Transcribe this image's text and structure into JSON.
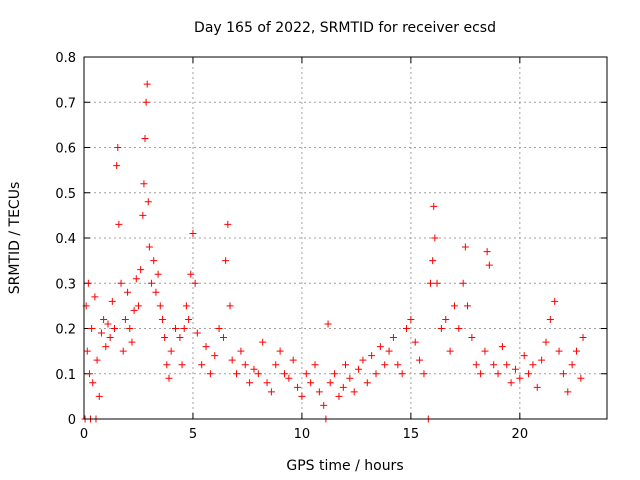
{
  "chart_data": {
    "type": "scatter",
    "title": "Day 165 of 2022, SRMTID for receiver ecsd",
    "xlabel": "GPS time / hours",
    "ylabel": "SRMTID / TECUs",
    "xlim": [
      0,
      24
    ],
    "ylim": [
      0,
      0.8
    ],
    "grid": true,
    "x_ticks": [
      0,
      5,
      10,
      15,
      20
    ],
    "x_tick_labels": [
      "0",
      "5",
      "10",
      "15",
      "20"
    ],
    "y_ticks": [
      0,
      0.1,
      0.2,
      0.3,
      0.4,
      0.5,
      0.6,
      0.7,
      0.8
    ],
    "y_tick_labels": [
      "0",
      "0.1",
      "0.2",
      "0.3",
      "0.4",
      "0.5",
      "0.6",
      "0.7",
      "0.8"
    ],
    "marker": "plus",
    "color": "#ff0000",
    "series": [
      {
        "name": "SRMTID",
        "points": [
          [
            0.05,
            0.0
          ],
          [
            0.1,
            0.25
          ],
          [
            0.15,
            0.15
          ],
          [
            0.2,
            0.3
          ],
          [
            0.25,
            0.1
          ],
          [
            0.3,
            0.0
          ],
          [
            0.35,
            0.2
          ],
          [
            0.4,
            0.08
          ],
          [
            0.5,
            0.27
          ],
          [
            0.55,
            0.0
          ],
          [
            0.6,
            0.13
          ],
          [
            0.7,
            0.05
          ],
          [
            0.8,
            0.19
          ],
          [
            0.9,
            0.22
          ],
          [
            1.0,
            0.16
          ],
          [
            1.1,
            0.21
          ],
          [
            1.2,
            0.18
          ],
          [
            1.3,
            0.26
          ],
          [
            1.4,
            0.2
          ],
          [
            1.5,
            0.56
          ],
          [
            1.55,
            0.6
          ],
          [
            1.6,
            0.43
          ],
          [
            1.7,
            0.3
          ],
          [
            1.8,
            0.15
          ],
          [
            1.9,
            0.22
          ],
          [
            2.0,
            0.28
          ],
          [
            2.1,
            0.2
          ],
          [
            2.2,
            0.17
          ],
          [
            2.3,
            0.24
          ],
          [
            2.4,
            0.31
          ],
          [
            2.5,
            0.25
          ],
          [
            2.6,
            0.33
          ],
          [
            2.7,
            0.45
          ],
          [
            2.75,
            0.52
          ],
          [
            2.8,
            0.62
          ],
          [
            2.85,
            0.7
          ],
          [
            2.9,
            0.74
          ],
          [
            2.95,
            0.48
          ],
          [
            3.0,
            0.38
          ],
          [
            3.1,
            0.3
          ],
          [
            3.2,
            0.35
          ],
          [
            3.3,
            0.28
          ],
          [
            3.4,
            0.32
          ],
          [
            3.5,
            0.25
          ],
          [
            3.6,
            0.22
          ],
          [
            3.7,
            0.18
          ],
          [
            3.8,
            0.12
          ],
          [
            3.9,
            0.09
          ],
          [
            4.0,
            0.15
          ],
          [
            4.2,
            0.2
          ],
          [
            4.4,
            0.18
          ],
          [
            4.5,
            0.12
          ],
          [
            4.6,
            0.2
          ],
          [
            4.7,
            0.25
          ],
          [
            4.8,
            0.22
          ],
          [
            4.9,
            0.32
          ],
          [
            5.0,
            0.41
          ],
          [
            5.1,
            0.3
          ],
          [
            5.2,
            0.19
          ],
          [
            5.4,
            0.12
          ],
          [
            5.6,
            0.16
          ],
          [
            5.8,
            0.1
          ],
          [
            6.0,
            0.14
          ],
          [
            6.2,
            0.2
          ],
          [
            6.4,
            0.18
          ],
          [
            6.5,
            0.35
          ],
          [
            6.6,
            0.43
          ],
          [
            6.7,
            0.25
          ],
          [
            6.8,
            0.13
          ],
          [
            7.0,
            0.1
          ],
          [
            7.2,
            0.15
          ],
          [
            7.4,
            0.12
          ],
          [
            7.6,
            0.08
          ],
          [
            7.8,
            0.11
          ],
          [
            8.0,
            0.1
          ],
          [
            8.2,
            0.17
          ],
          [
            8.4,
            0.08
          ],
          [
            8.6,
            0.06
          ],
          [
            8.8,
            0.12
          ],
          [
            9.0,
            0.15
          ],
          [
            9.2,
            0.1
          ],
          [
            9.4,
            0.09
          ],
          [
            9.6,
            0.13
          ],
          [
            9.8,
            0.07
          ],
          [
            10.0,
            0.05
          ],
          [
            10.2,
            0.1
          ],
          [
            10.4,
            0.08
          ],
          [
            10.6,
            0.12
          ],
          [
            10.8,
            0.06
          ],
          [
            11.0,
            0.03
          ],
          [
            11.1,
            0.0
          ],
          [
            11.2,
            0.21
          ],
          [
            11.3,
            0.08
          ],
          [
            11.5,
            0.1
          ],
          [
            11.7,
            0.05
          ],
          [
            11.9,
            0.07
          ],
          [
            12.0,
            0.12
          ],
          [
            12.2,
            0.09
          ],
          [
            12.4,
            0.06
          ],
          [
            12.6,
            0.11
          ],
          [
            12.8,
            0.13
          ],
          [
            13.0,
            0.08
          ],
          [
            13.2,
            0.14
          ],
          [
            13.4,
            0.1
          ],
          [
            13.6,
            0.16
          ],
          [
            13.8,
            0.12
          ],
          [
            14.0,
            0.15
          ],
          [
            14.2,
            0.18
          ],
          [
            14.4,
            0.12
          ],
          [
            14.6,
            0.1
          ],
          [
            14.8,
            0.2
          ],
          [
            15.0,
            0.22
          ],
          [
            15.2,
            0.17
          ],
          [
            15.4,
            0.13
          ],
          [
            15.6,
            0.1
          ],
          [
            15.8,
            0.0
          ],
          [
            15.9,
            0.3
          ],
          [
            16.0,
            0.35
          ],
          [
            16.05,
            0.47
          ],
          [
            16.1,
            0.4
          ],
          [
            16.2,
            0.3
          ],
          [
            16.4,
            0.2
          ],
          [
            16.6,
            0.22
          ],
          [
            16.8,
            0.15
          ],
          [
            17.0,
            0.25
          ],
          [
            17.2,
            0.2
          ],
          [
            17.4,
            0.3
          ],
          [
            17.5,
            0.38
          ],
          [
            17.6,
            0.25
          ],
          [
            17.8,
            0.18
          ],
          [
            18.0,
            0.12
          ],
          [
            18.2,
            0.1
          ],
          [
            18.4,
            0.15
          ],
          [
            18.5,
            0.37
          ],
          [
            18.6,
            0.34
          ],
          [
            18.8,
            0.12
          ],
          [
            19.0,
            0.1
          ],
          [
            19.2,
            0.16
          ],
          [
            19.4,
            0.12
          ],
          [
            19.6,
            0.08
          ],
          [
            19.8,
            0.11
          ],
          [
            20.0,
            0.09
          ],
          [
            20.2,
            0.14
          ],
          [
            20.4,
            0.1
          ],
          [
            20.6,
            0.12
          ],
          [
            20.8,
            0.07
          ],
          [
            21.0,
            0.13
          ],
          [
            21.2,
            0.17
          ],
          [
            21.4,
            0.22
          ],
          [
            21.6,
            0.26
          ],
          [
            21.8,
            0.15
          ],
          [
            22.0,
            0.1
          ],
          [
            22.2,
            0.06
          ],
          [
            22.4,
            0.12
          ],
          [
            22.6,
            0.15
          ],
          [
            22.8,
            0.09
          ],
          [
            22.9,
            0.18
          ]
        ]
      }
    ]
  }
}
